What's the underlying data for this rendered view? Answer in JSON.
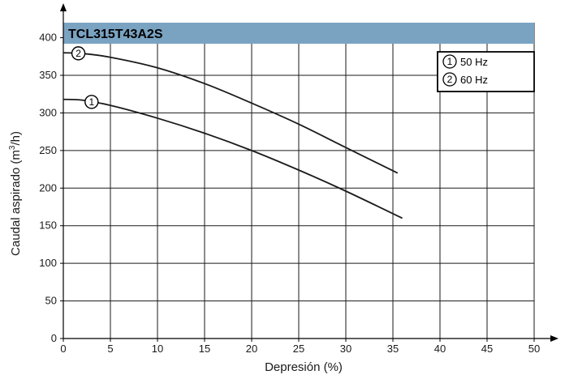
{
  "chart_data": {
    "type": "line",
    "title": "TCL315T43A2S",
    "xlabel": "Depresión (%)",
    "ylabel_main": "Caudal aspirado (m",
    "ylabel_sup": "3",
    "ylabel_end": "/h)",
    "xlim": [
      0,
      50
    ],
    "ylim": [
      0,
      420
    ],
    "xticks": [
      0,
      5,
      10,
      15,
      20,
      25,
      30,
      35,
      40,
      45,
      50
    ],
    "yticks": [
      0,
      50,
      100,
      150,
      200,
      250,
      300,
      350,
      400
    ],
    "grid": true,
    "legend_placement": "top-right",
    "colors": {
      "title_band": "#7aa3c2",
      "line": "#1a1a1a",
      "grid": "#1a1a1a"
    },
    "series": [
      {
        "name": "50 Hz",
        "marker": "1",
        "x": [
          0,
          2,
          5,
          10,
          15,
          20,
          25,
          30,
          36
        ],
        "y": [
          318,
          317,
          310,
          293,
          273,
          250,
          224,
          196,
          160
        ]
      },
      {
        "name": "60 Hz",
        "marker": "2",
        "x": [
          0,
          2,
          5,
          10,
          15,
          20,
          25,
          30,
          35.5
        ],
        "y": [
          380,
          379,
          374,
          360,
          339,
          313,
          285,
          254,
          220
        ]
      }
    ],
    "legend": [
      {
        "marker": "1",
        "label": "50 Hz"
      },
      {
        "marker": "2",
        "label": "60 Hz"
      }
    ]
  }
}
